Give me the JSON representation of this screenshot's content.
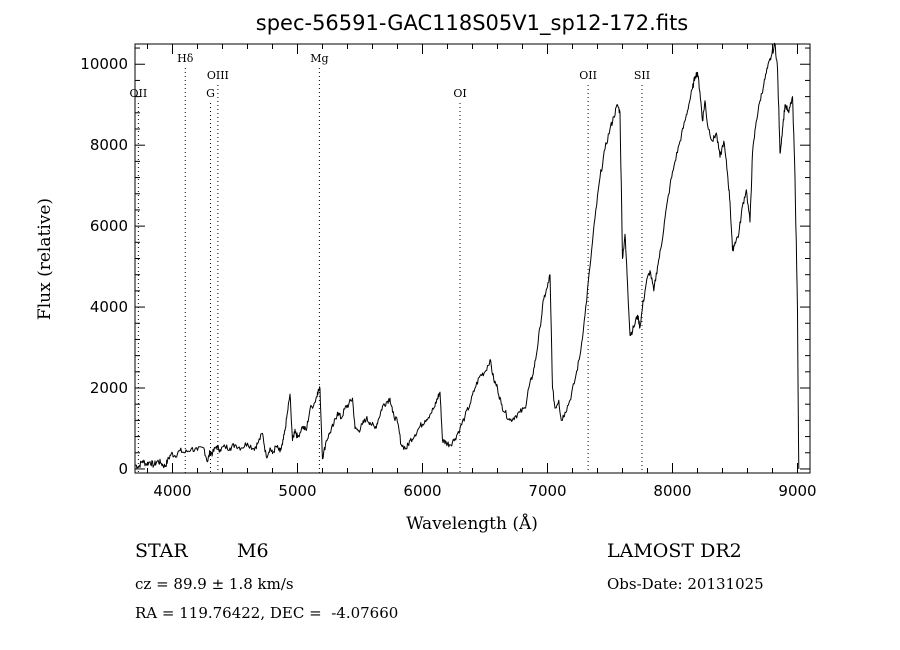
{
  "chart_data": {
    "type": "line",
    "title": "spec-56591-GAC118S05V1_sp12-172.fits",
    "xlabel": "Wavelength (Å)",
    "ylabel": "Flux (relative)",
    "xlim": [
      3700,
      9100
    ],
    "ylim": [
      -100,
      10500
    ],
    "xticks": [
      4000,
      5000,
      6000,
      7000,
      8000,
      9000
    ],
    "yticks": [
      0,
      2000,
      4000,
      6000,
      8000,
      10000
    ],
    "grid": false,
    "legend": "none",
    "line_color": "#000000",
    "spectral_lines": [
      {
        "label": "OII",
        "x": 3727,
        "row": 2
      },
      {
        "label": "Hδ",
        "x": 4102,
        "row": 0
      },
      {
        "label": "G",
        "x": 4304,
        "row": 2
      },
      {
        "label": "OIII",
        "x": 4363,
        "row": 1
      },
      {
        "label": "Mg",
        "x": 5175,
        "row": 0
      },
      {
        "label": "OI",
        "x": 6300,
        "row": 2
      },
      {
        "label": "OII",
        "x": 7325,
        "row": 1
      },
      {
        "label": "SII",
        "x": 7756,
        "row": 1
      }
    ],
    "series": [
      {
        "points": [
          [
            3700,
            100
          ],
          [
            3730,
            60
          ],
          [
            3760,
            200
          ],
          [
            3790,
            120
          ],
          [
            3820,
            180
          ],
          [
            3850,
            90
          ],
          [
            3880,
            200
          ],
          [
            3910,
            140
          ],
          [
            3940,
            60
          ],
          [
            3960,
            200
          ],
          [
            3990,
            380
          ],
          [
            4020,
            330
          ],
          [
            4060,
            450
          ],
          [
            4100,
            400
          ],
          [
            4150,
            500
          ],
          [
            4200,
            460
          ],
          [
            4250,
            520
          ],
          [
            4280,
            180
          ],
          [
            4300,
            420
          ],
          [
            4320,
            380
          ],
          [
            4350,
            560
          ],
          [
            4380,
            480
          ],
          [
            4420,
            550
          ],
          [
            4460,
            520
          ],
          [
            4500,
            600
          ],
          [
            4550,
            520
          ],
          [
            4600,
            640
          ],
          [
            4650,
            500
          ],
          [
            4680,
            620
          ],
          [
            4720,
            880
          ],
          [
            4750,
            300
          ],
          [
            4780,
            520
          ],
          [
            4800,
            380
          ],
          [
            4830,
            560
          ],
          [
            4860,
            420
          ],
          [
            4880,
            600
          ],
          [
            4900,
            950
          ],
          [
            4920,
            1400
          ],
          [
            4940,
            1850
          ],
          [
            4960,
            700
          ],
          [
            4980,
            980
          ],
          [
            5000,
            780
          ],
          [
            5040,
            1050
          ],
          [
            5070,
            950
          ],
          [
            5100,
            1480
          ],
          [
            5140,
            1650
          ],
          [
            5160,
            1900
          ],
          [
            5180,
            1980
          ],
          [
            5200,
            250
          ],
          [
            5230,
            700
          ],
          [
            5260,
            900
          ],
          [
            5290,
            1100
          ],
          [
            5320,
            1400
          ],
          [
            5350,
            1250
          ],
          [
            5380,
            1500
          ],
          [
            5410,
            1600
          ],
          [
            5440,
            1750
          ],
          [
            5460,
            1000
          ],
          [
            5490,
            950
          ],
          [
            5520,
            1100
          ],
          [
            5550,
            1250
          ],
          [
            5580,
            1150
          ],
          [
            5620,
            1000
          ],
          [
            5650,
            1250
          ],
          [
            5680,
            1550
          ],
          [
            5710,
            1650
          ],
          [
            5740,
            1750
          ],
          [
            5760,
            1400
          ],
          [
            5800,
            1150
          ],
          [
            5830,
            600
          ],
          [
            5870,
            500
          ],
          [
            5900,
            700
          ],
          [
            5940,
            850
          ],
          [
            5980,
            1050
          ],
          [
            6020,
            1200
          ],
          [
            6060,
            1350
          ],
          [
            6100,
            1550
          ],
          [
            6120,
            1750
          ],
          [
            6140,
            1900
          ],
          [
            6160,
            700
          ],
          [
            6190,
            650
          ],
          [
            6220,
            600
          ],
          [
            6260,
            750
          ],
          [
            6300,
            1000
          ],
          [
            6340,
            1300
          ],
          [
            6380,
            1600
          ],
          [
            6420,
            2000
          ],
          [
            6460,
            2300
          ],
          [
            6500,
            2400
          ],
          [
            6540,
            2700
          ],
          [
            6570,
            2200
          ],
          [
            6600,
            2000
          ],
          [
            6630,
            1600
          ],
          [
            6660,
            1400
          ],
          [
            6700,
            1200
          ],
          [
            6740,
            1300
          ],
          [
            6780,
            1400
          ],
          [
            6820,
            1500
          ],
          [
            6850,
            2000
          ],
          [
            6880,
            2300
          ],
          [
            6910,
            2800
          ],
          [
            6940,
            3500
          ],
          [
            6970,
            4200
          ],
          [
            7000,
            4500
          ],
          [
            7020,
            4800
          ],
          [
            7040,
            2000
          ],
          [
            7060,
            1500
          ],
          [
            7090,
            1700
          ],
          [
            7110,
            1200
          ],
          [
            7140,
            1400
          ],
          [
            7180,
            1700
          ],
          [
            7220,
            2200
          ],
          [
            7260,
            2800
          ],
          [
            7300,
            3800
          ],
          [
            7340,
            5000
          ],
          [
            7380,
            6200
          ],
          [
            7420,
            7200
          ],
          [
            7460,
            7900
          ],
          [
            7500,
            8400
          ],
          [
            7530,
            8700
          ],
          [
            7560,
            9000
          ],
          [
            7580,
            8800
          ],
          [
            7600,
            5200
          ],
          [
            7620,
            5800
          ],
          [
            7640,
            4600
          ],
          [
            7660,
            3300
          ],
          [
            7690,
            3500
          ],
          [
            7720,
            3800
          ],
          [
            7740,
            3500
          ],
          [
            7760,
            4000
          ],
          [
            7790,
            4600
          ],
          [
            7820,
            4900
          ],
          [
            7850,
            4400
          ],
          [
            7880,
            5000
          ],
          [
            7910,
            5500
          ],
          [
            7940,
            6200
          ],
          [
            7980,
            7000
          ],
          [
            8020,
            7600
          ],
          [
            8060,
            8100
          ],
          [
            8100,
            8600
          ],
          [
            8130,
            9000
          ],
          [
            8160,
            9400
          ],
          [
            8180,
            9700
          ],
          [
            8200,
            9800
          ],
          [
            8220,
            9300
          ],
          [
            8240,
            8600
          ],
          [
            8260,
            9100
          ],
          [
            8280,
            8500
          ],
          [
            8320,
            8100
          ],
          [
            8350,
            8300
          ],
          [
            8380,
            7700
          ],
          [
            8410,
            8100
          ],
          [
            8440,
            7300
          ],
          [
            8460,
            6600
          ],
          [
            8480,
            5400
          ],
          [
            8500,
            5600
          ],
          [
            8530,
            5800
          ],
          [
            8560,
            6500
          ],
          [
            8590,
            6900
          ],
          [
            8620,
            6100
          ],
          [
            8640,
            7800
          ],
          [
            8670,
            8600
          ],
          [
            8700,
            9100
          ],
          [
            8730,
            9500
          ],
          [
            8760,
            9900
          ],
          [
            8790,
            10200
          ],
          [
            8820,
            10500
          ],
          [
            8840,
            9900
          ],
          [
            8860,
            7800
          ],
          [
            8880,
            8400
          ],
          [
            8900,
            9000
          ],
          [
            8930,
            8800
          ],
          [
            8960,
            9200
          ],
          [
            8980,
            7200
          ],
          [
            9000,
            3900
          ],
          [
            9010,
            0
          ]
        ]
      }
    ]
  },
  "info": {
    "class_label": "STAR",
    "subclass": "M6",
    "survey": "LAMOST DR2",
    "cz": "cz = 89.9 ± 1.8 km/s",
    "obs_date": "Obs-Date: 20131025",
    "coords": "RA = 119.76422, DEC =  -4.07660"
  }
}
